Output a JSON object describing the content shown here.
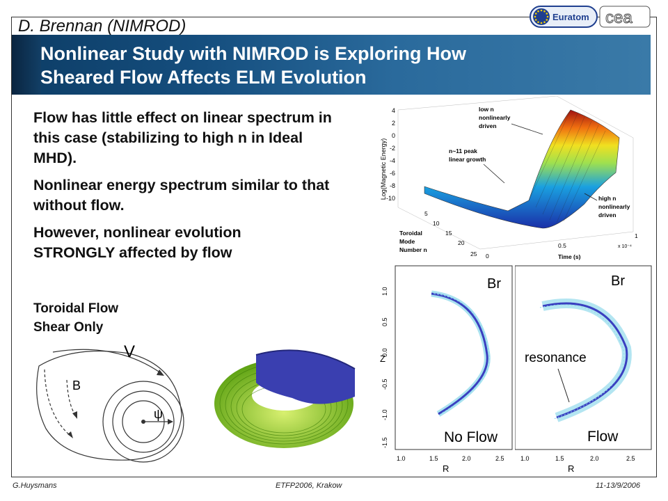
{
  "header": {
    "author": "D. Brennan (NIMROD)",
    "logos": {
      "euratom": "Euratom",
      "cea": "cea"
    }
  },
  "title": {
    "line1": "Nonlinear Study with NIMROD is Exploring How",
    "line2": "Sheared Flow Affects ELM Evolution"
  },
  "bullets": [
    "Flow has little effect on linear spectrum in this case (stabilizing to high n in Ideal MHD).",
    "Nonlinear energy spectrum similar to that without flow.",
    "However, nonlinear evolution STRONGLY affected by flow"
  ],
  "flow_label": {
    "line1": "Toroidal Flow",
    "line2": "Shear Only"
  },
  "diagram": {
    "v_label": "V",
    "b_label": "B",
    "psi_label": "ψ"
  },
  "surface_plot": {
    "zlabel": "Log(Magnetic Energy)",
    "z_ticks": [
      "4",
      "2",
      "0",
      "-2",
      "-4",
      "-6",
      "-8",
      "-10"
    ],
    "annotations": [
      "low n",
      "nonlinearly",
      "driven",
      "n~11 peak",
      "linear growth",
      "high n",
      "nonlinearly",
      "driven"
    ],
    "mode_axis": {
      "label1": "Toroidal",
      "label2": "Mode",
      "label3": "Number n",
      "ticks": [
        "5",
        "10",
        "15",
        "20",
        "25"
      ]
    },
    "time_axis": {
      "label": "Time (s)",
      "ticks": [
        "0",
        "0.5",
        "1"
      ],
      "scale": "x 10⁻⁴"
    }
  },
  "contour_left": {
    "field": "Br",
    "caption": "No Flow",
    "xlabel": "R",
    "ylabel": "Z",
    "x_ticks": [
      "1.0",
      "1.5",
      "2.0",
      "2.5"
    ],
    "y_ticks": [
      "1.0",
      "0.5",
      "0.0",
      "-0.5",
      "-1.0",
      "-1.5"
    ]
  },
  "contour_right": {
    "field": "Br",
    "caption": "Flow",
    "annotation": "resonance",
    "xlabel": "R",
    "x_ticks": [
      "1.0",
      "1.5",
      "2.0",
      "2.5"
    ]
  },
  "footer": {
    "left": "G.Huysmans",
    "center": "ETFP2006, Krakow",
    "right": "11-13/9/2006"
  },
  "colors": {
    "banner": "#154e7e",
    "euratom_blue": "#1f3f8f",
    "contour_cyan": "#56c6e0",
    "torus_green": "#7ec622",
    "torus_blue": "#3a3fb0"
  }
}
